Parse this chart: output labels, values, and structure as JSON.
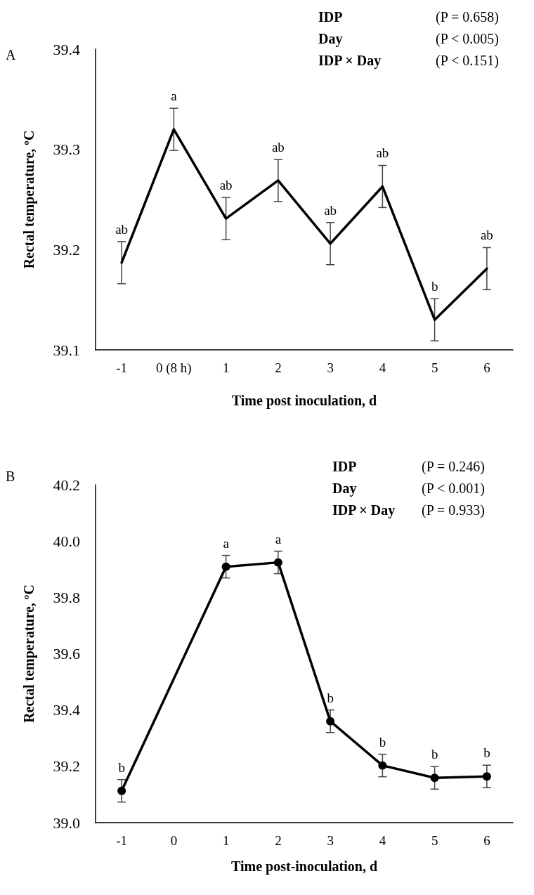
{
  "chart_data": [
    {
      "type": "line",
      "title": "A",
      "xlabel": "Time post inoculation, d",
      "ylabel": "Rectal temperature, ºC",
      "categories": [
        "-1",
        "0 (8 h)",
        "1",
        "2",
        "3",
        "4",
        "5",
        "6"
      ],
      "series": [
        {
          "color": "#000000",
          "values": [
            39.187,
            39.32,
            39.231,
            39.269,
            39.206,
            39.263,
            39.13,
            39.181
          ],
          "errors": [
            0.021,
            0.021,
            0.021,
            0.021,
            0.021,
            0.021,
            0.021,
            0.021
          ]
        }
      ],
      "ylim": [
        39.1,
        39.4
      ],
      "yticks": [
        39.1,
        39.2,
        39.3,
        39.4
      ],
      "grid": false,
      "marker": "none",
      "line_style": "solid",
      "annotations": [
        "IDP",
        "(P = 0.658)",
        "Day",
        "(P < 0.005)",
        "IDP × Day",
        "(P < 0.151)",
        {
          "text": "ab",
          "x": "-1",
          "y": 39.187
        },
        {
          "text": "a",
          "x": "0 (8 h)",
          "y": 39.32
        },
        {
          "text": "ab",
          "x": "1",
          "y": 39.231
        },
        {
          "text": "ab",
          "x": "2",
          "y": 39.269
        },
        {
          "text": "ab",
          "x": "3",
          "y": 39.206
        },
        {
          "text": "ab",
          "x": "4",
          "y": 39.263
        },
        {
          "text": "b",
          "x": "5",
          "y": 39.13
        },
        {
          "text": "ab",
          "x": "6",
          "y": 39.181
        }
      ]
    },
    {
      "type": "line",
      "title": "B",
      "xlabel": "Time post-inoculation, d",
      "ylabel": "Rectal temperature, ºC",
      "categories": [
        "-1",
        "0",
        "1",
        "2",
        "3",
        "4",
        "5",
        "6"
      ],
      "series": [
        {
          "color": "#000000",
          "values": [
            39.113,
            null,
            39.909,
            39.924,
            39.36,
            39.203,
            39.159,
            39.164
          ],
          "errors": [
            0.04,
            null,
            0.04,
            0.04,
            0.04,
            0.04,
            0.04,
            0.04
          ]
        }
      ],
      "ylim": [
        39.0,
        40.2
      ],
      "yticks": [
        {
          "value": 39.0,
          "label": "39.0"
        },
        39.2,
        39.4,
        39.6,
        39.8,
        {
          "value": 40.0,
          "label": "40.0"
        },
        40.2
      ],
      "grid": false,
      "marker": "circle",
      "line_style": "solid",
      "annotations": [
        "IDP",
        "(P = 0.246)",
        "Day",
        "(P < 0.001)",
        "IDP × Day",
        "(P = 0.933)",
        {
          "text": "b",
          "x": "-1",
          "y": 39.113
        },
        {
          "text": "a",
          "x": "1",
          "y": 39.909
        },
        {
          "text": "a",
          "x": "2",
          "y": 39.924
        },
        {
          "text": "b",
          "x": "3",
          "y": 39.36
        },
        {
          "text": "b",
          "x": "4",
          "y": 39.203
        },
        {
          "text": "b",
          "x": "5",
          "y": 39.159
        },
        {
          "text": "b",
          "x": "6",
          "y": 39.164
        }
      ]
    }
  ]
}
